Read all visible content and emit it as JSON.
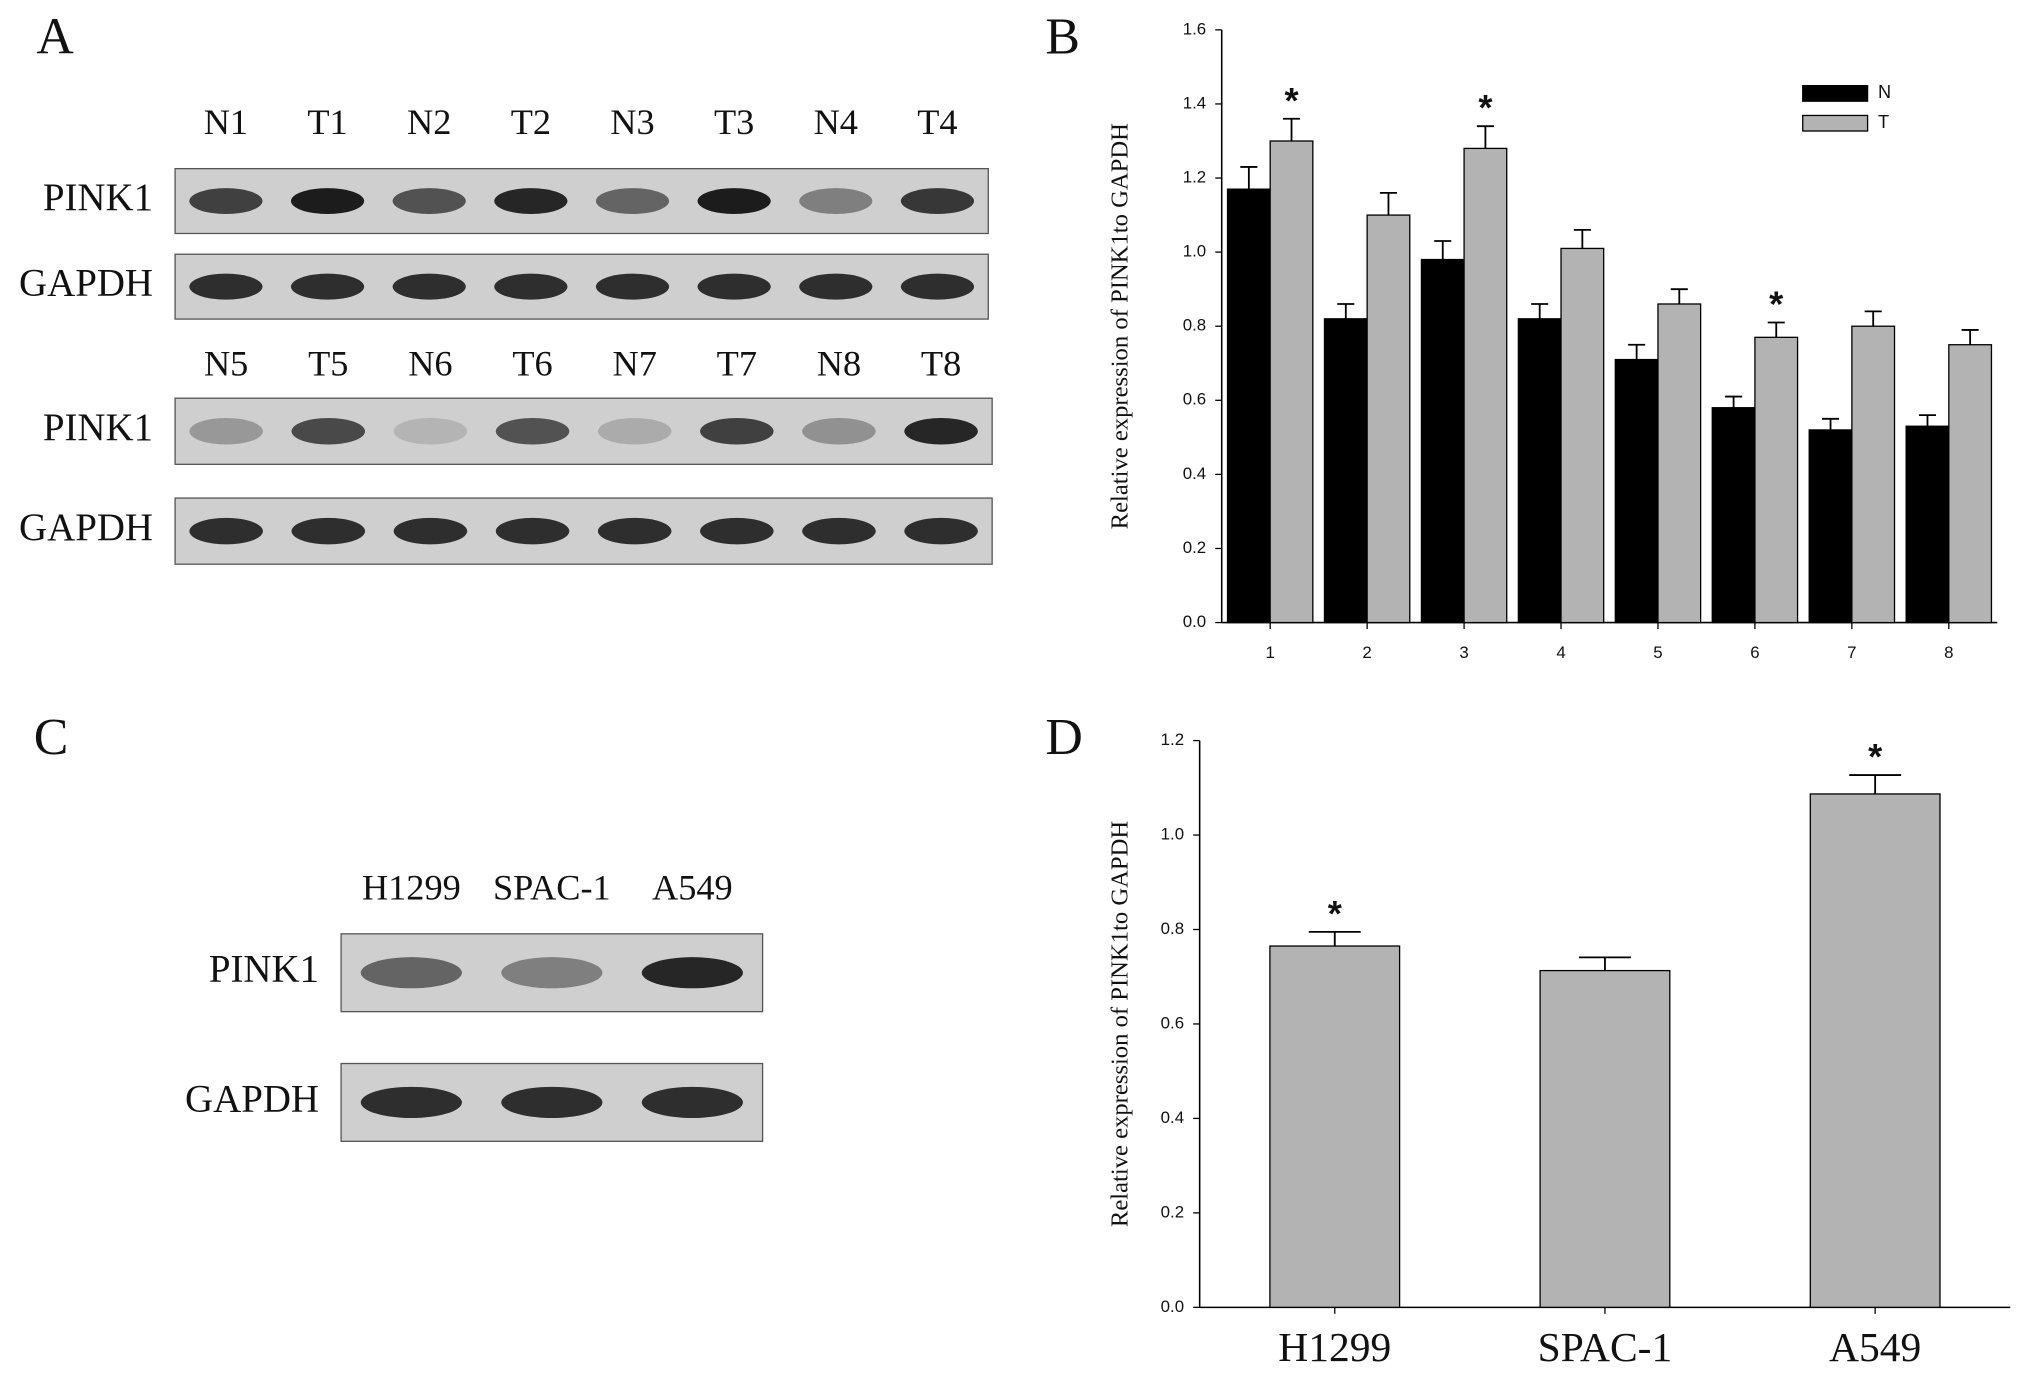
{
  "panel_labels": [
    "A",
    "B",
    "C",
    "D"
  ],
  "blot_a": {
    "rows": [
      {
        "lanes": [
          "N1",
          "T1",
          "N2",
          "T2",
          "N3",
          "T3",
          "N4",
          "T4"
        ],
        "proteins": [
          "PINK1",
          "GAPDH"
        ]
      },
      {
        "lanes": [
          "N5",
          "T5",
          "N6",
          "T6",
          "N7",
          "T7",
          "N8",
          "T8"
        ],
        "proteins": [
          "PINK1",
          "GAPDH"
        ]
      }
    ]
  },
  "blot_c": {
    "lanes": [
      "H1299",
      "SPAC-1",
      "A549"
    ],
    "proteins": [
      "PINK1",
      "GAPDH"
    ]
  },
  "chart_data": [
    {
      "type": "bar",
      "ylabel": "Relative expression of PINK1to GAPDH",
      "categories": [
        "1",
        "2",
        "3",
        "4",
        "5",
        "6",
        "7",
        "8"
      ],
      "series": [
        {
          "name": "N",
          "color": "#000000",
          "values": [
            1.17,
            0.82,
            0.98,
            0.82,
            0.71,
            0.58,
            0.52,
            0.53
          ],
          "errors": [
            0.06,
            0.04,
            0.05,
            0.04,
            0.04,
            0.03,
            0.03,
            0.03
          ]
        },
        {
          "name": "T",
          "color": "#b3b3b3",
          "values": [
            1.3,
            1.1,
            1.28,
            1.01,
            0.86,
            0.77,
            0.8,
            0.75
          ],
          "errors": [
            0.06,
            0.06,
            0.06,
            0.05,
            0.04,
            0.04,
            0.04,
            0.04
          ],
          "significance": [
            "*",
            null,
            "*",
            null,
            null,
            "*",
            null,
            null
          ]
        }
      ],
      "ylim": [
        0,
        1.6
      ],
      "yticks": [
        {
          "value": 0,
          "label": "0.0"
        },
        0.2,
        0.4,
        0.6,
        0.8,
        {
          "value": 1,
          "label": "1.0"
        },
        1.2,
        1.4,
        1.6
      ],
      "legend": "upper right"
    },
    {
      "type": "bar",
      "ylabel": "Relative expression of PINK1to GAPDH",
      "categories": [
        "H1299",
        "SPAC-1",
        "A549"
      ],
      "values": [
        0.765,
        0.713,
        1.087
      ],
      "errors": [
        0.03,
        0.028,
        0.04
      ],
      "significance": [
        "*",
        null,
        "*"
      ],
      "color": "#b3b3b3",
      "ylim": [
        0,
        1.2
      ],
      "yticks": [
        {
          "value": 0,
          "label": "0.0"
        },
        0.2,
        0.4,
        0.6,
        0.8,
        {
          "value": 1,
          "label": "1.0"
        },
        1.2
      ]
    }
  ]
}
